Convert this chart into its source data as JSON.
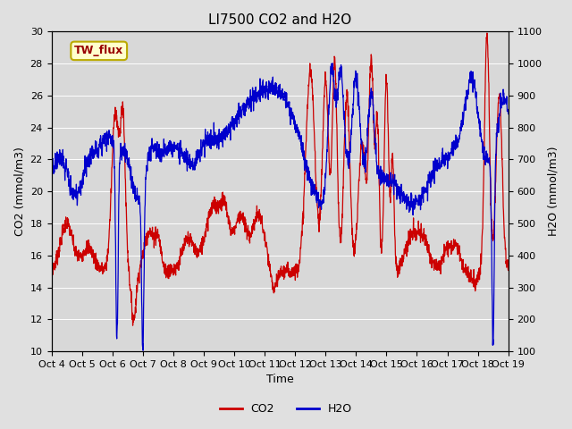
{
  "title": "LI7500 CO2 and H2O",
  "xlabel": "Time",
  "ylabel_left": "CO2 (mmol/m3)",
  "ylabel_right": "H2O (mmol/m3)",
  "ylim_left": [
    10,
    30
  ],
  "ylim_right": [
    100,
    1100
  ],
  "yticks_left": [
    10,
    12,
    14,
    16,
    18,
    20,
    22,
    24,
    26,
    28,
    30
  ],
  "yticks_right": [
    100,
    200,
    300,
    400,
    500,
    600,
    700,
    800,
    900,
    1000,
    1100
  ],
  "xtick_labels": [
    "Oct 4",
    "Oct 5",
    "Oct 6",
    "Oct 7",
    "Oct 8",
    "Oct 9",
    "Oct 10",
    "Oct 11",
    "Oct 12",
    "Oct 13",
    "Oct 14",
    "Oct 15",
    "Oct 16",
    "Oct 17",
    "Oct 18",
    "Oct 19"
  ],
  "co2_color": "#cc0000",
  "h2o_color": "#0000cc",
  "fig_bg_color": "#e0e0e0",
  "plot_bg_color": "#d8d8d8",
  "annotation_text": "TW_flux",
  "annotation_bg": "#ffffcc",
  "annotation_border": "#bbaa00",
  "legend_co2": "CO2",
  "legend_h2o": "H2O",
  "title_fontsize": 11,
  "axis_fontsize": 9,
  "tick_fontsize": 8,
  "linewidth": 0.9
}
